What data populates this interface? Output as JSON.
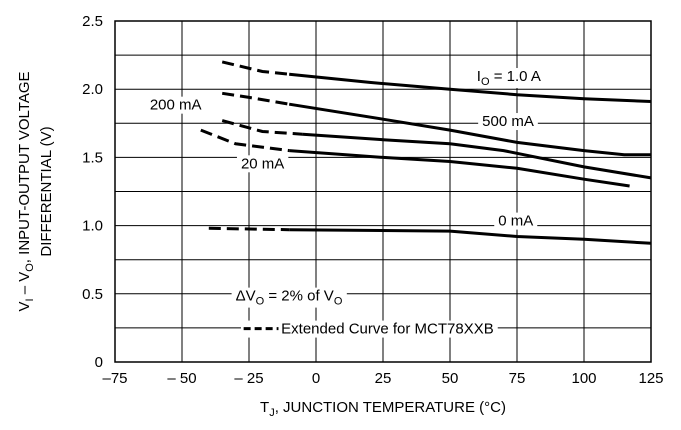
{
  "chart_data": {
    "type": "line",
    "title": "",
    "xlabel": {
      "prefix": "T",
      "sub": "J",
      "rest": ", JUNCTION TEMPERATURE (°C)"
    },
    "ylabel": {
      "line1": {
        "a": "V",
        "a_sub": "I",
        "b": " – V",
        "b_sub": "O",
        "c": ", INPUT-OUTPUT VOLTAGE"
      },
      "line2": "DIFFERENTIAL (V)"
    },
    "xlim": [
      -75,
      125
    ],
    "ylim": [
      0,
      2.5
    ],
    "xticks": [
      -75,
      -50,
      -25,
      0,
      25,
      50,
      75,
      100,
      125
    ],
    "xtick_labels": [
      "–75",
      "– 50",
      "– 25",
      "0",
      "25",
      "50",
      "75",
      "100",
      "125"
    ],
    "yticks": [
      0,
      0.5,
      1.0,
      1.5,
      2.0,
      2.5
    ],
    "ytick_labels": [
      "0",
      "0.5",
      "1.0",
      "1.5",
      "2.0",
      "2.5"
    ],
    "grid": true,
    "series": [
      {
        "name": "IO = 1.0 A",
        "dashed": [
          [
            -35,
            2.2
          ],
          [
            -20,
            2.13
          ],
          [
            -10,
            2.11
          ]
        ],
        "solid": [
          [
            -10,
            2.11
          ],
          [
            20,
            2.05
          ],
          [
            50,
            2.0
          ],
          [
            75,
            1.96
          ],
          [
            100,
            1.93
          ],
          [
            125,
            1.91
          ]
        ]
      },
      {
        "name": "500 mA",
        "dashed": [
          [
            -35,
            1.97
          ],
          [
            -25,
            1.94
          ],
          [
            -10,
            1.89
          ]
        ],
        "solid": [
          [
            -10,
            1.89
          ],
          [
            25,
            1.78
          ],
          [
            50,
            1.7
          ],
          [
            75,
            1.61
          ],
          [
            100,
            1.55
          ],
          [
            115,
            1.52
          ],
          [
            125,
            1.52
          ]
        ]
      },
      {
        "name": "200 mA",
        "dashed": [
          [
            -35,
            1.77
          ],
          [
            -20,
            1.69
          ],
          [
            -5,
            1.67
          ]
        ],
        "solid": [
          [
            -5,
            1.67
          ],
          [
            25,
            1.63
          ],
          [
            50,
            1.6
          ],
          [
            70,
            1.55
          ],
          [
            100,
            1.43
          ],
          [
            125,
            1.35
          ]
        ]
      },
      {
        "name": "20 mA",
        "dashed": [
          [
            -43,
            1.7
          ],
          [
            -30,
            1.6
          ],
          [
            -10,
            1.55
          ]
        ],
        "solid": [
          [
            -10,
            1.55
          ],
          [
            25,
            1.5
          ],
          [
            50,
            1.47
          ],
          [
            75,
            1.42
          ],
          [
            100,
            1.34
          ],
          [
            117,
            1.29
          ]
        ]
      },
      {
        "name": "0 mA",
        "dashed": [
          [
            -40,
            0.98
          ],
          [
            -10,
            0.97
          ]
        ],
        "solid": [
          [
            -10,
            0.97
          ],
          [
            50,
            0.96
          ],
          [
            75,
            0.92
          ],
          [
            100,
            0.9
          ],
          [
            125,
            0.87
          ]
        ]
      }
    ],
    "annotations": {
      "io_1a": {
        "p": "I",
        "sub": "O",
        "s": " = 1.0 A"
      },
      "ma500": "500 mA",
      "ma200": "200 mA",
      "ma20": "20 mA",
      "ma0": "0 mA",
      "dv": {
        "a": "ΔV",
        "a_sub": "O",
        "b": " = 2% of V",
        "b_sub": "O"
      },
      "legend_dashed": "Extended Curve for MCT78XXB"
    }
  }
}
